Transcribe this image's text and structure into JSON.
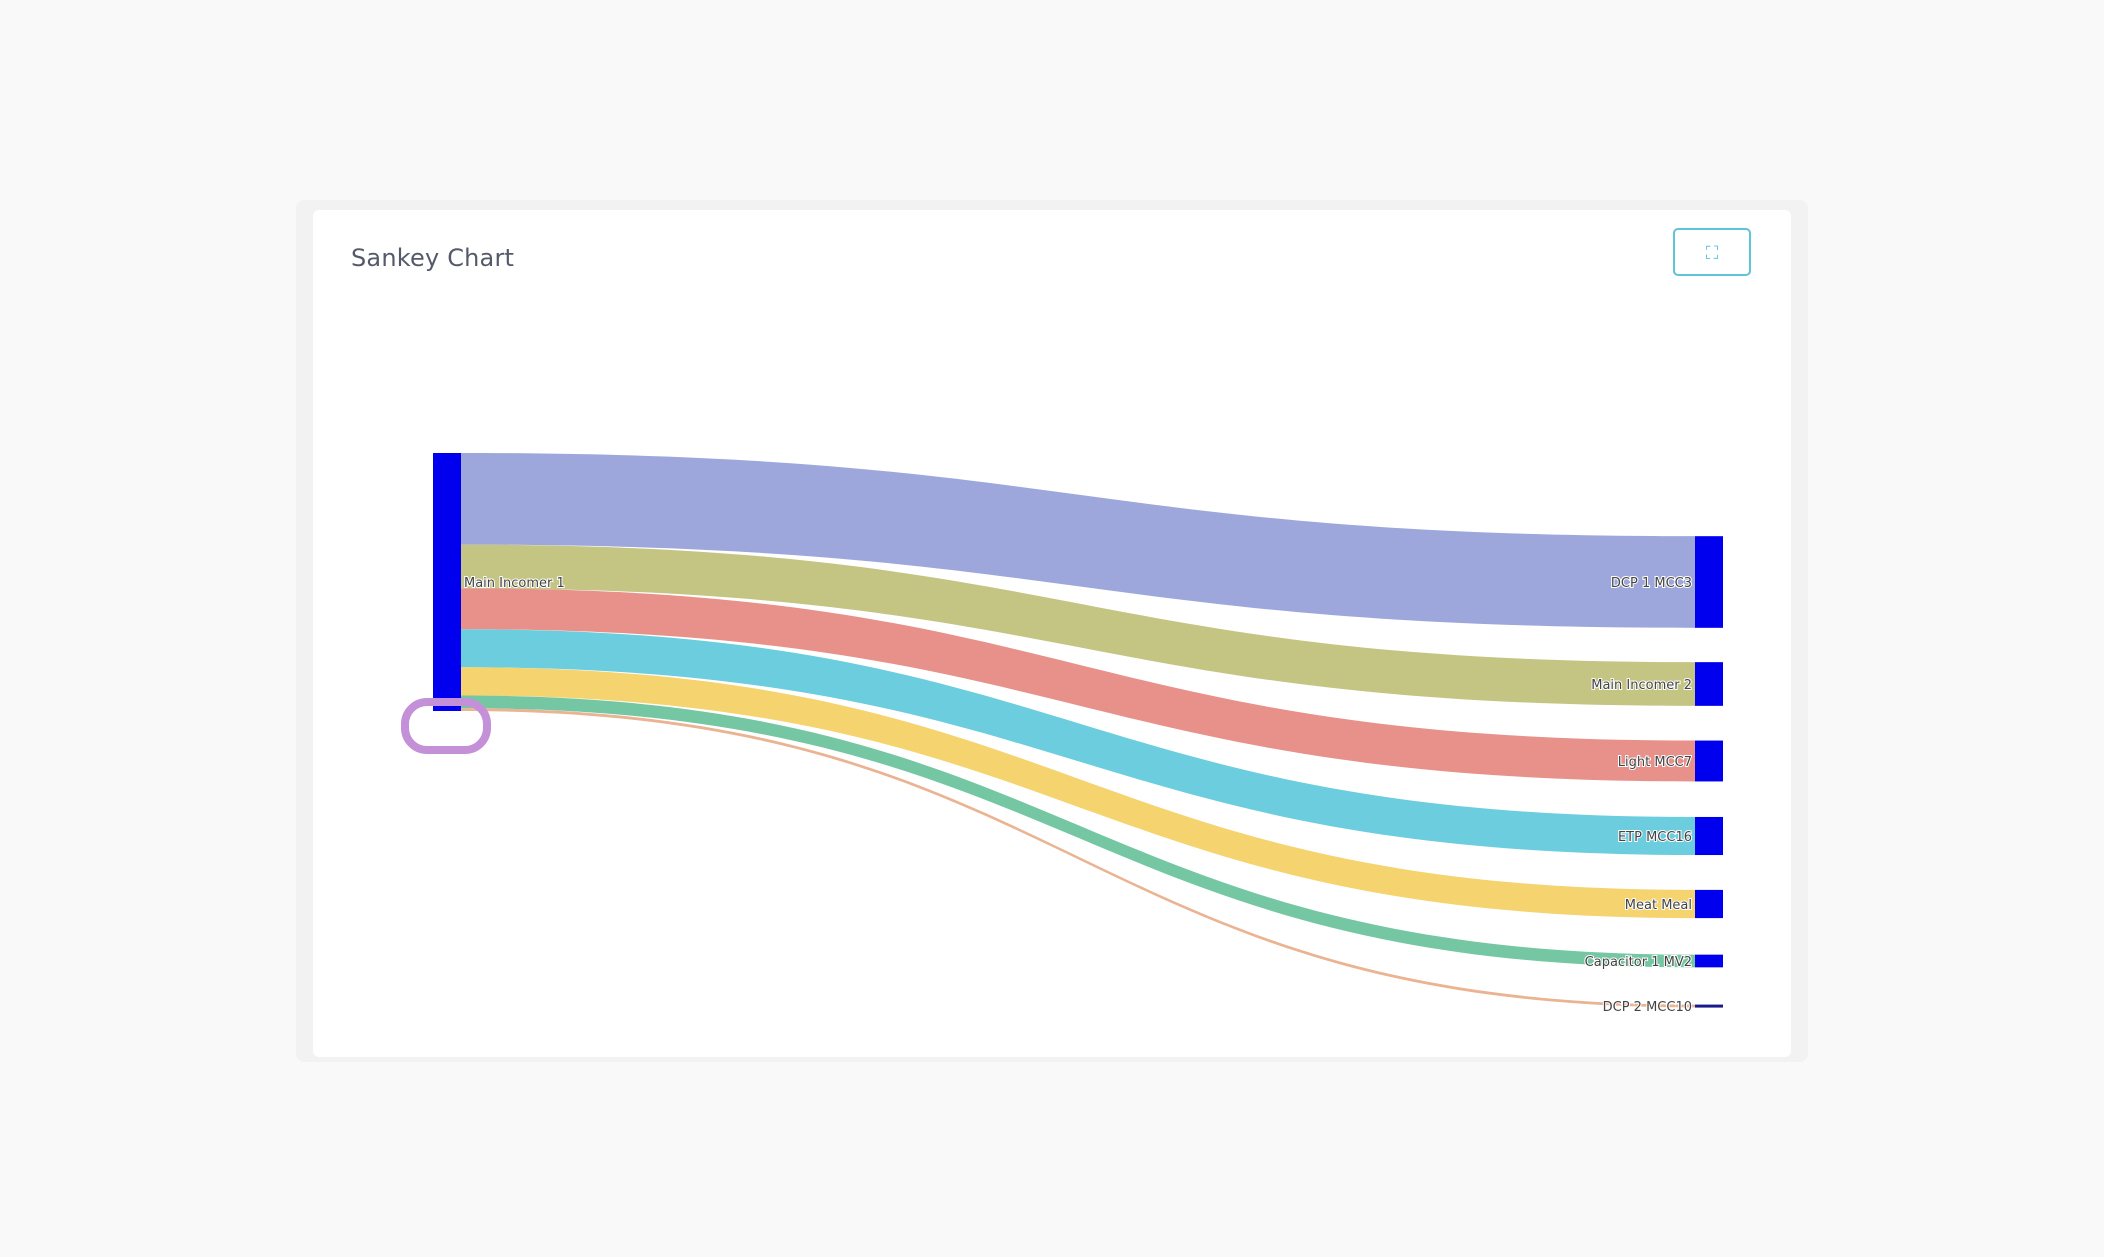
{
  "page": {
    "background": "#f9f9f9"
  },
  "card": {
    "title": "Sankey Chart",
    "fullscreen_icon": "fullscreen-icon",
    "fullscreen_glyph": "⛶",
    "accent": "#5ec5d8"
  },
  "chart_data": {
    "type": "sankey",
    "title": "Sankey Chart",
    "node_color": "#0000ee",
    "nodes": [
      {
        "name": "Main Incomer 1",
        "side": "source"
      },
      {
        "name": "DCP 1  MCC3",
        "side": "target"
      },
      {
        "name": "Main Incomer 2",
        "side": "target"
      },
      {
        "name": "Light  MCC7",
        "side": "target"
      },
      {
        "name": "ETP  MCC16",
        "side": "target"
      },
      {
        "name": "Meat Meal",
        "side": "target"
      },
      {
        "name": "Capacitor 1 MV2",
        "side": "target"
      },
      {
        "name": "DCP 2  MCC10",
        "side": "target"
      }
    ],
    "links": [
      {
        "source": "Main Incomer 1",
        "target": "DCP 1  MCC3",
        "value": 65,
        "color": "#9ea7db"
      },
      {
        "source": "Main Incomer 1",
        "target": "Main Incomer 2",
        "value": 31,
        "color": "#c4c483"
      },
      {
        "source": "Main Incomer 1",
        "target": "Light  MCC7",
        "value": 29,
        "color": "#e7918a"
      },
      {
        "source": "Main Incomer 1",
        "target": "ETP  MCC16",
        "value": 27,
        "color": "#6bcddd"
      },
      {
        "source": "Main Incomer 1",
        "target": "Meat Meal",
        "value": 20,
        "color": "#f5d36f"
      },
      {
        "source": "Main Incomer 1",
        "target": "Capacitor 1 MV2",
        "value": 9,
        "color": "#74c7a2"
      },
      {
        "source": "Main Incomer 1",
        "target": "DCP 2  MCC10",
        "value": 2,
        "color": "#eab391"
      }
    ]
  }
}
